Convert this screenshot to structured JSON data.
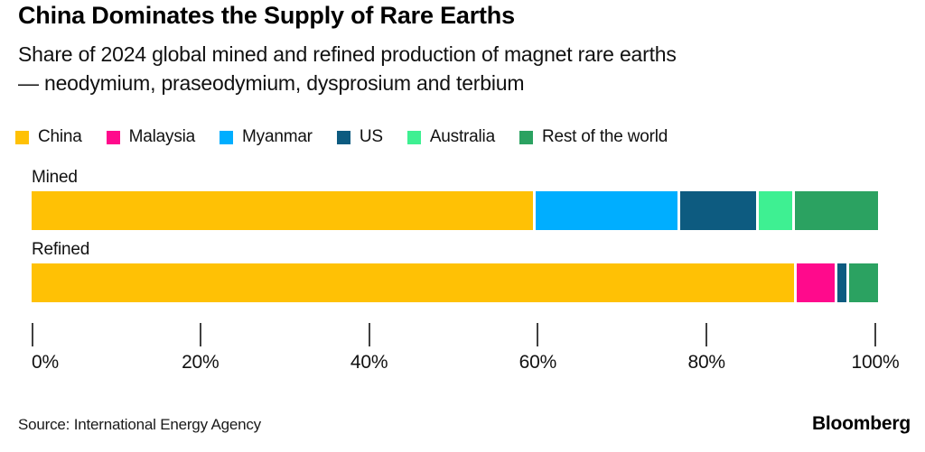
{
  "title": "China Dominates the Supply of Rare Earths",
  "subtitle": {
    "line1": "Share of 2024 global mined and refined production of magnet rare earths",
    "line2": "— neodymium, praseodymium, dysprosium and terbium"
  },
  "chart_data": {
    "type": "bar",
    "orientation": "horizontal_stacked",
    "unit": "%",
    "title": "China Dominates the Supply of Rare Earths",
    "categories": [
      "Mined",
      "Refined"
    ],
    "series": [
      {
        "name": "China",
        "color": "#FFC105",
        "values": [
          60,
          91
        ]
      },
      {
        "name": "Malaysia",
        "color": "#FF0A8C",
        "values": [
          0,
          4.5
        ]
      },
      {
        "name": "Myanmar",
        "color": "#00AEFF",
        "values": [
          17,
          0
        ]
      },
      {
        "name": "US",
        "color": "#0D5B80",
        "values": [
          9,
          1
        ]
      },
      {
        "name": "Australia",
        "color": "#3EF092",
        "values": [
          4,
          0
        ]
      },
      {
        "name": "Rest of the world",
        "color": "#2BA261",
        "values": [
          10,
          3.5
        ]
      }
    ],
    "x_axis": {
      "ticks": [
        "0%",
        "20%",
        "40%",
        "60%",
        "80%",
        "100%"
      ],
      "range": [
        0,
        100
      ]
    },
    "legend_position": "top",
    "grid": false
  },
  "footer": {
    "source": "Source: International Energy Agency",
    "brand": "Bloomberg"
  }
}
